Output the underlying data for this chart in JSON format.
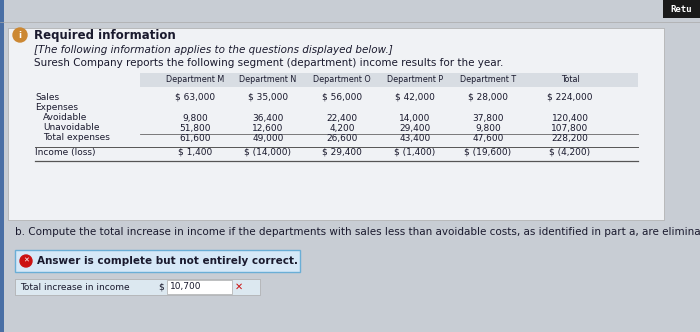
{
  "bg_color": "#c8cdd4",
  "card_color": "#f0f2f5",
  "card_inner_color": "#ffffff",
  "title1": "Required information",
  "title2": "[The following information applies to the questions displayed below.]",
  "title3": "Suresh Company reports the following segment (department) income results for the year.",
  "col_headers": [
    "Department M",
    "Department N",
    "Department O",
    "Department P",
    "Department T",
    "Total"
  ],
  "row_label_Sales": "Sales",
  "row_label_Expenses": "Expenses",
  "row_label_Avoidable": "Avoidable",
  "row_label_Unavoidable": "Unavoidable",
  "row_label_TotalExp": "Total expenses",
  "row_label_Income": "Income (loss)",
  "sales": [
    "$ 63,000",
    "$ 35,000",
    "$ 56,000",
    "$ 42,000",
    "$ 28,000",
    "$ 224,000"
  ],
  "avoidable": [
    "9,800",
    "36,400",
    "22,400",
    "14,000",
    "37,800",
    "120,400"
  ],
  "unavoidable": [
    "51,800",
    "12,600",
    "4,200",
    "29,400",
    "9,800",
    "107,800"
  ],
  "total_exp": [
    "61,600",
    "49,000",
    "26,600",
    "43,400",
    "47,600",
    "228,200"
  ],
  "income": [
    "$ 1,400",
    "$ (14,000)",
    "$ 29,400",
    "$ (1,400)",
    "$ (19,600)",
    "$ (4,200)"
  ],
  "part_b_text": "b. Compute the total increase in income if the departments with sales less than avoidable costs, as identified in part a, are eliminated.",
  "answer_box_bg": "#d6e8f7",
  "answer_box_border": "#6aaed6",
  "answer_label": "Answer is complete but not entirely correct.",
  "answer_icon_color": "#cc1111",
  "answer_field_label": "Total increase in income",
  "answer_dollar": "$",
  "answer_field_value": "10,700",
  "answer_field_bg": "#dce8f0",
  "answer_x_color": "#cc1111",
  "retu_label": "Retu",
  "retu_bg": "#1a1a1a",
  "retu_text_color": "#ffffff",
  "info_icon_color": "#cc8833",
  "left_bar_color": "#4a6fa5",
  "header_row_bg": "#d8dde3",
  "table_text_color": "#1a1a2e",
  "text_color_dark": "#1a1a2e"
}
